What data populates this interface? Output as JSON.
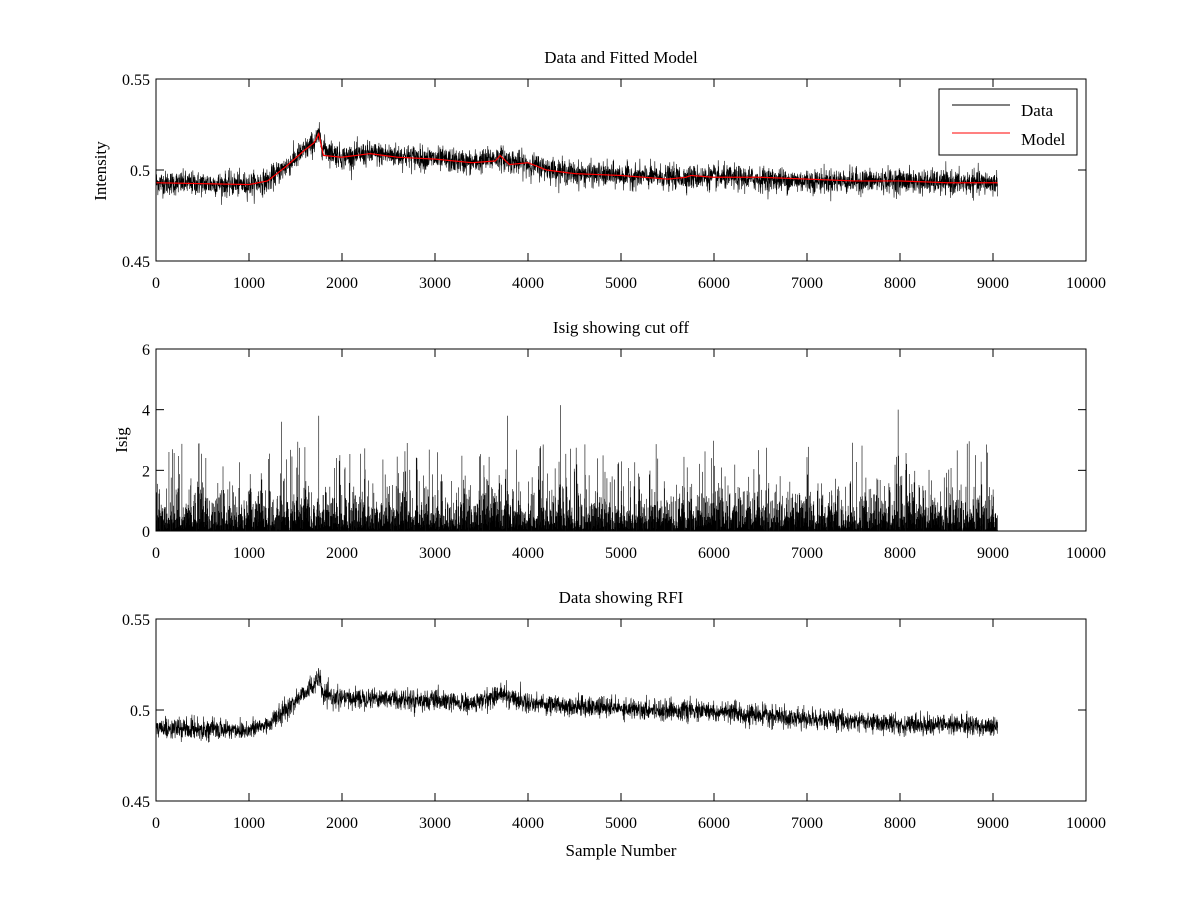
{
  "chart_data": [
    {
      "type": "line",
      "title": "Data and Fitted Model",
      "xlabel": "",
      "ylabel": "Intensity",
      "xlim": [
        0,
        10000
      ],
      "ylim": [
        0.45,
        0.55
      ],
      "xticks": [
        0,
        1000,
        2000,
        3000,
        4000,
        5000,
        6000,
        7000,
        8000,
        9000,
        10000
      ],
      "xtick_labels": [
        "0",
        "1000",
        "2000",
        "3000",
        "4000",
        "5000",
        "6000",
        "7000",
        "8000",
        "9000",
        "10000"
      ],
      "yticks": [
        0.45,
        0.5,
        0.55
      ],
      "ytick_labels": [
        "0.45",
        "0.5",
        "0.55"
      ],
      "legend_position": "top-right",
      "series": [
        {
          "name": "Data",
          "color": "#000000",
          "noise": 0.006,
          "x": [
            0,
            1000,
            1200,
            1400,
            1600,
            1700,
            1750,
            1800,
            2000,
            2300,
            2600,
            3000,
            3400,
            3700,
            3800,
            4000,
            4500,
            5000,
            5500,
            6000,
            6500,
            7000,
            7500,
            8000,
            8500,
            9000,
            9050
          ],
          "values": [
            0.493,
            0.492,
            0.494,
            0.502,
            0.511,
            0.515,
            0.519,
            0.512,
            0.507,
            0.509,
            0.508,
            0.506,
            0.504,
            0.507,
            0.505,
            0.503,
            0.498,
            0.497,
            0.496,
            0.496,
            0.495,
            0.494,
            0.494,
            0.494,
            0.493,
            0.493,
            0.493
          ]
        },
        {
          "name": "Model",
          "color": "#ff0000",
          "noise": 0,
          "x": [
            0,
            1000,
            1200,
            1400,
            1600,
            1700,
            1750,
            1800,
            2000,
            2300,
            2600,
            3000,
            3400,
            3650,
            3700,
            3800,
            4000,
            4050,
            4200,
            4500,
            5000,
            5500,
            5700,
            5750,
            6000,
            6500,
            7000,
            7500,
            8000,
            8500,
            9000,
            9050
          ],
          "values": [
            0.493,
            0.492,
            0.494,
            0.502,
            0.511,
            0.515,
            0.52,
            0.508,
            0.507,
            0.509,
            0.507,
            0.506,
            0.504,
            0.505,
            0.508,
            0.503,
            0.504,
            0.503,
            0.5,
            0.498,
            0.497,
            0.495,
            0.496,
            0.497,
            0.496,
            0.496,
            0.495,
            0.494,
            0.494,
            0.493,
            0.493,
            0.493
          ]
        }
      ]
    },
    {
      "type": "line",
      "title": "Isig showing cut off",
      "xlabel": "",
      "ylabel": "Isig",
      "xlim": [
        0,
        10000
      ],
      "ylim": [
        0,
        6
      ],
      "xticks": [
        0,
        1000,
        2000,
        3000,
        4000,
        5000,
        6000,
        7000,
        8000,
        9000,
        10000
      ],
      "xtick_labels": [
        "0",
        "1000",
        "2000",
        "3000",
        "4000",
        "5000",
        "6000",
        "7000",
        "8000",
        "9000",
        "10000"
      ],
      "yticks": [
        0,
        2,
        4,
        6
      ],
      "ytick_labels": [
        "0",
        "2",
        "4",
        "6"
      ],
      "series": [
        {
          "name": "Isig",
          "color": "#000000",
          "x_range": [
            0,
            9050
          ],
          "typical_range": [
            0,
            1.6
          ],
          "peak_max": 4.15,
          "peaks": [
            {
              "x": 1750,
              "y": 3.8
            },
            {
              "x": 1350,
              "y": 3.6
            },
            {
              "x": 3780,
              "y": 3.8
            },
            {
              "x": 4350,
              "y": 4.15
            },
            {
              "x": 7980,
              "y": 4.0
            }
          ]
        }
      ]
    },
    {
      "type": "line",
      "title": "Data showing RFI",
      "xlabel": "Sample Number",
      "ylabel": "",
      "xlim": [
        0,
        10000
      ],
      "ylim": [
        0.45,
        0.55
      ],
      "xticks": [
        0,
        1000,
        2000,
        3000,
        4000,
        5000,
        6000,
        7000,
        8000,
        9000,
        10000
      ],
      "xtick_labels": [
        "0",
        "1000",
        "2000",
        "3000",
        "4000",
        "5000",
        "6000",
        "7000",
        "8000",
        "9000",
        "10000"
      ],
      "yticks": [
        0.45,
        0.5,
        0.55
      ],
      "ytick_labels": [
        "0.45",
        "0.5",
        "0.55"
      ],
      "series": [
        {
          "name": "Data",
          "color": "#000000",
          "noise": 0.005,
          "x": [
            0,
            1000,
            1200,
            1400,
            1600,
            1700,
            1750,
            1800,
            2000,
            2300,
            2600,
            3000,
            3400,
            3700,
            3800,
            4000,
            4500,
            5000,
            5500,
            6000,
            6500,
            7000,
            7500,
            8000,
            8500,
            9000,
            9050
          ],
          "values": [
            0.49,
            0.489,
            0.492,
            0.5,
            0.51,
            0.514,
            0.518,
            0.508,
            0.506,
            0.507,
            0.506,
            0.505,
            0.503,
            0.509,
            0.507,
            0.504,
            0.502,
            0.501,
            0.5,
            0.499,
            0.497,
            0.495,
            0.494,
            0.492,
            0.492,
            0.491,
            0.491
          ]
        }
      ]
    }
  ]
}
